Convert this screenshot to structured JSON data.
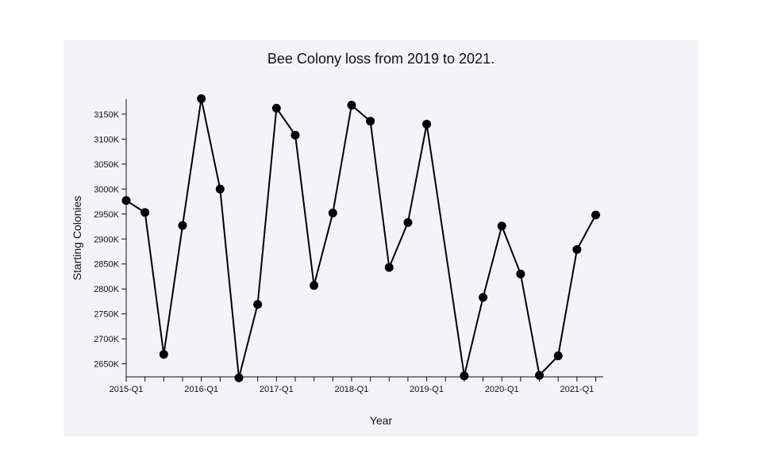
{
  "chart_data": {
    "type": "line",
    "title": "Bee Colony loss from 2019 to 2021.",
    "xlabel": "Year",
    "ylabel": "Starting Colonies",
    "x": [
      "2015-Q1",
      "2015-Q2",
      "2015-Q3",
      "2015-Q4",
      "2016-Q1",
      "2016-Q2",
      "2016-Q3",
      "2016-Q4",
      "2017-Q1",
      "2017-Q2",
      "2017-Q3",
      "2017-Q4",
      "2018-Q1",
      "2018-Q2",
      "2018-Q3",
      "2018-Q4",
      "2019-Q1",
      "2019-Q2",
      "2019-Q3",
      "2019-Q4",
      "2020-Q1",
      "2020-Q2",
      "2020-Q3",
      "2020-Q4",
      "2021-Q1",
      "2021-Q2"
    ],
    "x_tick_labels": [
      "2015-Q1",
      "2016-Q1",
      "2017-Q1",
      "2018-Q1",
      "2019-Q1",
      "2020-Q1",
      "2021-Q1"
    ],
    "y_ticks": [
      2650,
      2700,
      2750,
      2800,
      2850,
      2900,
      2950,
      3000,
      3050,
      3100,
      3150
    ],
    "y_tick_suffix": "K",
    "ylim": [
      2624,
      3180
    ],
    "series": [
      {
        "values": [
          2977,
          2953,
          2669,
          2927,
          3181,
          3000,
          2622,
          2769,
          3162,
          3108,
          2807,
          2952,
          3168,
          3136,
          2843,
          2933,
          3130,
          null,
          2626,
          2783,
          2926,
          2830,
          2627,
          2666,
          2879,
          2948
        ]
      }
    ],
    "grid": false,
    "legend": "none",
    "color": "#000000"
  }
}
